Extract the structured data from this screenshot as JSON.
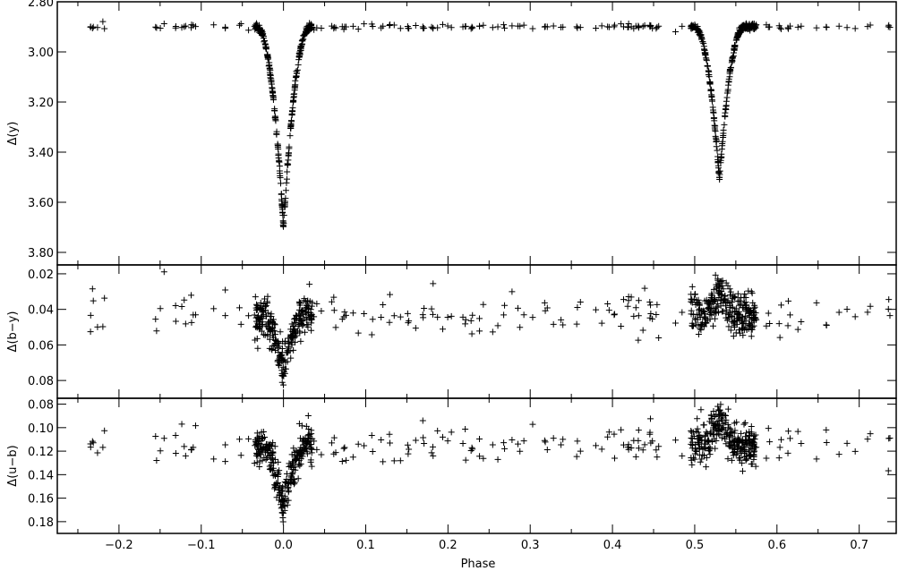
{
  "chart_data": [
    {
      "type": "scatter",
      "panel": "top",
      "ylabel": "Δ(y)",
      "xlabel": "",
      "xlim": [
        -0.275,
        0.745
      ],
      "ylim": [
        3.85,
        2.8
      ],
      "y_inverted": true,
      "yticks": [
        2.8,
        3.0,
        3.2,
        3.4,
        3.6,
        3.8
      ],
      "ytick_labels": [
        "2.80",
        "3.00",
        "3.20",
        "3.40",
        "3.60",
        "3.80"
      ],
      "xticks": [
        -0.2,
        -0.1,
        0.0,
        0.1,
        0.2,
        0.3,
        0.4,
        0.5,
        0.6,
        0.7
      ],
      "marker": "plus",
      "model": {
        "baseline": 2.9,
        "eclipses": [
          {
            "phase": 0.0,
            "depth": 0.8,
            "half_width": 0.033
          },
          {
            "phase": 0.53,
            "depth": 0.61,
            "half_width": 0.031
          }
        ],
        "scatter": 0.006
      }
    },
    {
      "type": "scatter",
      "panel": "middle",
      "ylabel": "Δ(b−y)",
      "xlabel": "",
      "xlim": [
        -0.275,
        0.745
      ],
      "ylim": [
        0.09,
        0.015
      ],
      "y_inverted": true,
      "yticks": [
        0.02,
        0.04,
        0.06,
        0.08
      ],
      "ytick_labels": [
        "0.02",
        "0.04",
        "0.06",
        "0.08"
      ],
      "xticks": [
        -0.2,
        -0.1,
        0.0,
        0.1,
        0.2,
        0.3,
        0.4,
        0.5,
        0.6,
        0.7
      ],
      "marker": "plus",
      "model": {
        "baseline": 0.043,
        "eclipses": [
          {
            "phase": 0.0,
            "depth": 0.03,
            "half_width": 0.03
          },
          {
            "phase": 0.53,
            "depth": -0.017,
            "half_width": 0.025
          }
        ],
        "scatter": 0.006
      }
    },
    {
      "type": "scatter",
      "panel": "bottom",
      "ylabel": "Δ(u−b)",
      "xlabel": "Phase",
      "xlim": [
        -0.275,
        0.745
      ],
      "ylim": [
        0.19,
        0.075
      ],
      "y_inverted": true,
      "yticks": [
        0.08,
        0.1,
        0.12,
        0.14,
        0.16,
        0.18
      ],
      "ytick_labels": [
        "0.08",
        "0.10",
        "0.12",
        "0.14",
        "0.16",
        "0.18"
      ],
      "xticks": [
        -0.2,
        -0.1,
        0.0,
        0.1,
        0.2,
        0.3,
        0.4,
        0.5,
        0.6,
        0.7
      ],
      "xtick_labels": [
        "−0.2",
        "−0.1",
        "0.0",
        "0.1",
        "0.2",
        "0.3",
        "0.4",
        "0.5",
        "0.6",
        "0.7"
      ],
      "marker": "plus",
      "model": {
        "baseline": 0.115,
        "eclipses": [
          {
            "phase": 0.0,
            "depth": 0.055,
            "half_width": 0.03
          },
          {
            "phase": 0.53,
            "depth": -0.025,
            "half_width": 0.025
          }
        ],
        "scatter": 0.008
      }
    }
  ]
}
